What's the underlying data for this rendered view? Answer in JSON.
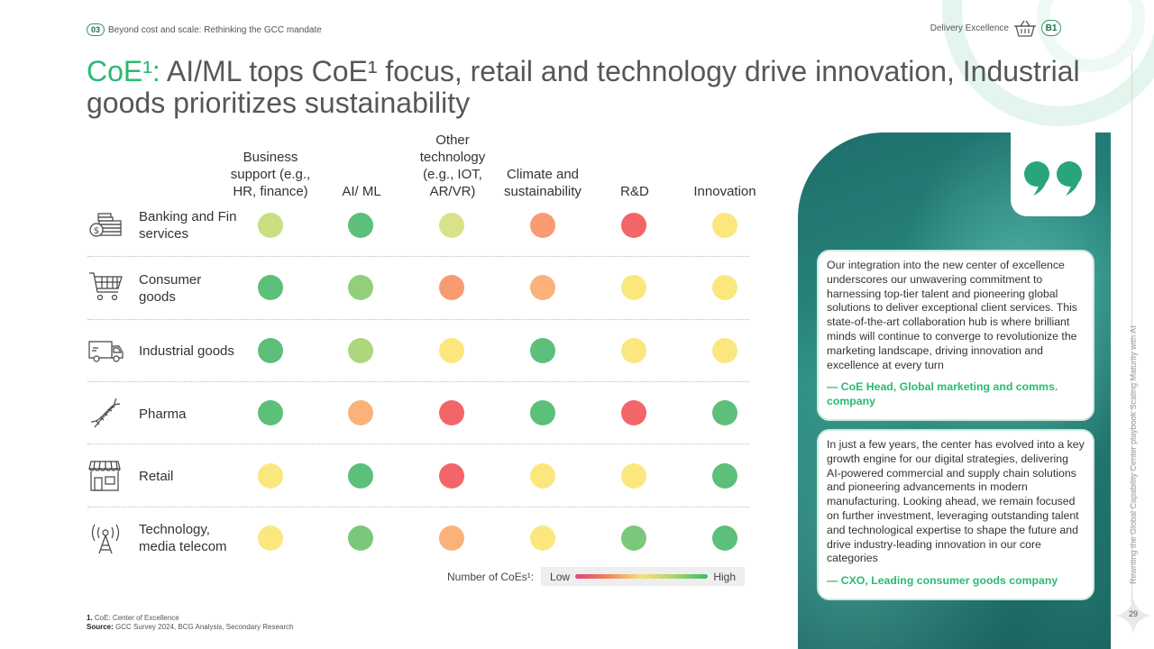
{
  "header": {
    "section_number": "03",
    "section_title": "Beyond cost and scale: Rethinking the GCC mandate",
    "chapter_label": "Delivery Excellence",
    "chapter_icon": "basket-icon",
    "chapter_badge": "B1"
  },
  "title": {
    "prefix": "CoE¹:",
    "text": " AI/ML tops CoE¹ focus, retail and technology drive innovation, Industrial goods prioritizes sustainability"
  },
  "columns": [
    {
      "label": "Business support (e.g., HR, finance)"
    },
    {
      "label": "AI/ ML"
    },
    {
      "label": "Other technology (e.g., IOT, AR/VR)"
    },
    {
      "label": "Climate and sustainability"
    },
    {
      "label": "R&D"
    },
    {
      "label": "Innovation"
    }
  ],
  "rows": [
    {
      "label": "Banking and Fin services",
      "icon": "bank-money-icon",
      "cells": [
        "#c9df82",
        "#5cbf7a",
        "#d9e288",
        "#f99b72",
        "#f26568",
        "#fbe77e"
      ]
    },
    {
      "label": "Consumer goods",
      "icon": "shopping-cart-icon",
      "cells": [
        "#5cbf7a",
        "#93cf7b",
        "#f99b72",
        "#fbb27a",
        "#fbe77e",
        "#fbe77e"
      ]
    },
    {
      "label": "Industrial goods",
      "icon": "delivery-truck-icon",
      "cells": [
        "#5cbf7a",
        "#aed67d",
        "#fbe77e",
        "#5cbf7a",
        "#fbe77e",
        "#fbe77e"
      ]
    },
    {
      "label": "Pharma",
      "icon": "dna-icon",
      "cells": [
        "#5cbf7a",
        "#fbb27a",
        "#f26568",
        "#5cbf7a",
        "#f26568",
        "#5cbf7a"
      ]
    },
    {
      "label": "Retail",
      "icon": "storefront-icon",
      "cells": [
        "#fbe77e",
        "#5cbf7a",
        "#f26568",
        "#fbe77e",
        "#fbe77e",
        "#5cbf7a"
      ]
    },
    {
      "label": "Technology, media telecom",
      "icon": "antenna-tower-icon",
      "cells": [
        "#fbe77e",
        "#7cc87a",
        "#fbb27a",
        "#fbe77e",
        "#7cc87a",
        "#5cbf7a"
      ]
    }
  ],
  "legend": {
    "label": "Number of CoEs¹:",
    "low": "Low",
    "high": "High",
    "gradient": [
      "#e0457b",
      "#f07b5c",
      "#f5e27a",
      "#a7d66d",
      "#3fba6e"
    ]
  },
  "quotes": [
    {
      "text": "Our integration into the new center of excellence underscores our unwavering commitment to harnessing top-tier talent and pioneering global solutions to deliver exceptional client services. This state-of-the-art collaboration hub is where brilliant minds will continue to converge to revolutionize the marketing landscape, driving innovation and excellence at every turn",
      "attribution": "— CoE Head, Global marketing and comms. company"
    },
    {
      "text": "In just a few years, the center has evolved into a key growth engine for our digital strategies, delivering AI-powered commercial and supply chain solutions and pioneering advancements in modern manufacturing. Looking ahead, we remain focused on further investment, leveraging outstanding talent and technological expertise to shape the future and drive industry-leading innovation in our core categories",
      "attribution": "— CXO, Leading consumer goods company"
    }
  ],
  "quote_icon": "quote-marks-icon",
  "footnote": {
    "note_number": "1.",
    "note_text": "CoE: Center of Excellence",
    "source_label": "Source:",
    "source_text": "GCC Survey 2024, BCG Analysis, Secondary Research"
  },
  "side_text": "Rewriting the Global Capability Center playbook Scaling Maturity with AI",
  "page_number": "29",
  "colors": {
    "accent": "#29ba74",
    "title": "#575757"
  }
}
